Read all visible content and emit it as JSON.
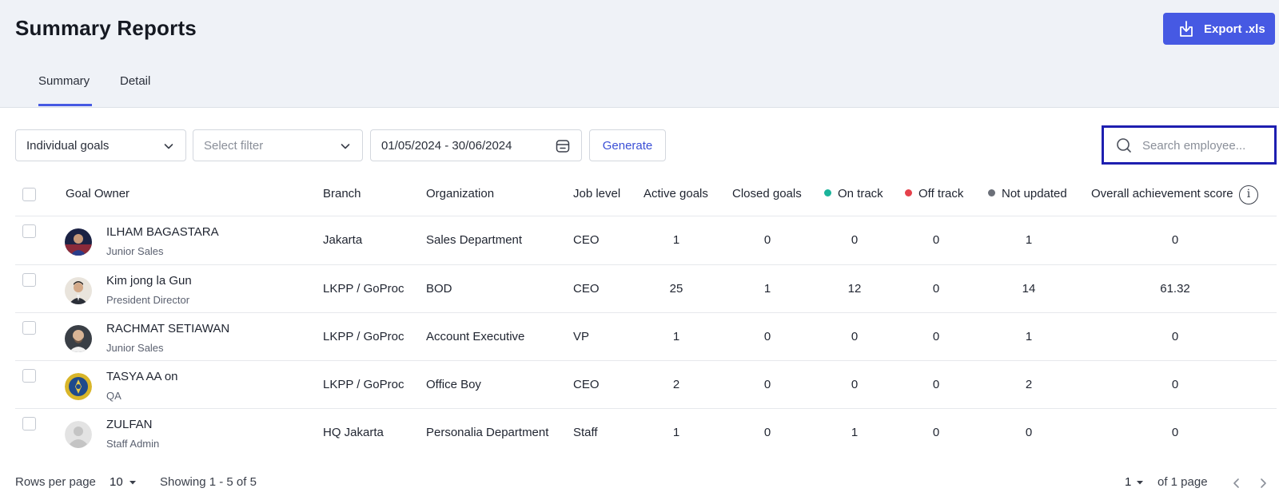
{
  "header": {
    "title": "Summary Reports",
    "export_label": "Export .xls",
    "tabs": [
      {
        "label": "Summary",
        "active": true
      },
      {
        "label": "Detail",
        "active": false
      }
    ]
  },
  "filters": {
    "goal_type": "Individual goals",
    "filter_placeholder": "Select filter",
    "date_range": "01/05/2024 - 30/06/2024",
    "generate_label": "Generate",
    "search_placeholder": "Search employee..."
  },
  "table": {
    "columns": {
      "goal_owner": "Goal Owner",
      "branch": "Branch",
      "organization": "Organization",
      "job_level": "Job level",
      "active_goals": "Active goals",
      "closed_goals": "Closed goals",
      "on_track": "On track",
      "off_track": "Off track",
      "not_updated": "Not updated",
      "overall_score": "Overall achievement score"
    },
    "rows": [
      {
        "name": "ILHAM BAGASTARA",
        "title": "Junior Sales",
        "branch": "Jakarta",
        "organization": "Sales Department",
        "job_level": "CEO",
        "active": "1",
        "closed": "0",
        "on_track": "0",
        "off_track": "0",
        "not_updated": "1",
        "score": "0",
        "avatar": "photo"
      },
      {
        "name": "Kim jong la Gun",
        "title": "President Director",
        "branch": "LKPP / GoProc",
        "organization": "BOD",
        "job_level": "CEO",
        "active": "25",
        "closed": "1",
        "on_track": "12",
        "off_track": "0",
        "not_updated": "14",
        "score": "61.32",
        "avatar": "photo"
      },
      {
        "name": "RACHMAT SETIAWAN",
        "title": "Junior Sales",
        "branch": "LKPP / GoProc",
        "organization": "Account Executive",
        "job_level": "VP",
        "active": "1",
        "closed": "0",
        "on_track": "0",
        "off_track": "0",
        "not_updated": "1",
        "score": "0",
        "avatar": "photo"
      },
      {
        "name": "TASYA AA on",
        "title": "QA",
        "branch": "LKPP / GoProc",
        "organization": "Office Boy",
        "job_level": "CEO",
        "active": "2",
        "closed": "0",
        "on_track": "0",
        "off_track": "0",
        "not_updated": "2",
        "score": "0",
        "avatar": "emblem"
      },
      {
        "name": "ZULFAN",
        "title": "Staff Admin",
        "branch": "HQ Jakarta",
        "organization": "Personalia Department",
        "job_level": "Staff",
        "active": "1",
        "closed": "0",
        "on_track": "1",
        "off_track": "0",
        "not_updated": "0",
        "score": "0",
        "avatar": "placeholder"
      }
    ]
  },
  "footer": {
    "rows_per_page_label": "Rows per page",
    "rows_per_page_value": "10",
    "showing": "Showing 1 - 5 of 5",
    "page": "1",
    "of_pages": "of 1 page"
  },
  "colors": {
    "accent": "#4659e3",
    "on_track": "#1bb49b",
    "off_track": "#e5414b",
    "not_updated": "#6b6f78",
    "search_focus": "#1e1fb0"
  }
}
